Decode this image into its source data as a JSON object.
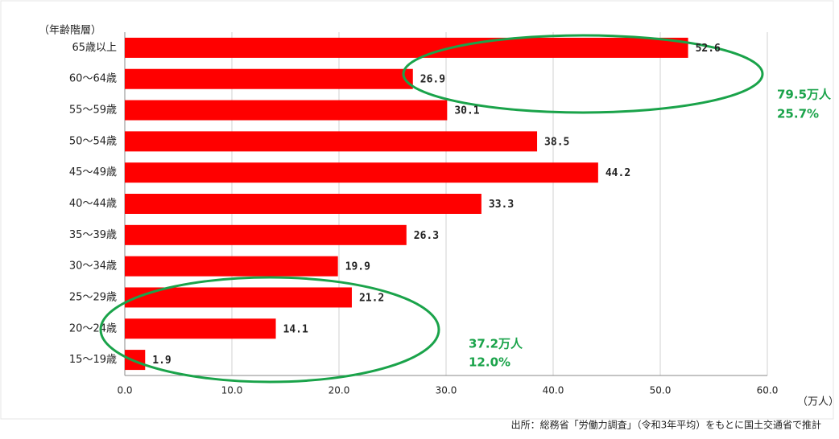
{
  "chart_data": {
    "type": "bar",
    "orientation": "horizontal",
    "y_label": "（年齢階層）",
    "x_label": "（万人）",
    "source": "出所：総務省「労働力調査」（令和3年平均）をもとに国土交通省で推計",
    "categories": [
      "65歳以上",
      "60～64歳",
      "55～59歳",
      "50～54歳",
      "45～49歳",
      "40～44歳",
      "35～39歳",
      "30～34歳",
      "25～29歳",
      "20～24歳",
      "15～19歳"
    ],
    "values": [
      52.6,
      26.9,
      30.1,
      38.5,
      44.2,
      33.3,
      26.3,
      19.9,
      21.2,
      14.1,
      1.9
    ],
    "color": "#ff0000",
    "xlim": [
      0,
      60
    ],
    "xticks": [
      {
        "value": 0,
        "label": "0.0"
      },
      {
        "value": 10,
        "label": "10.0"
      },
      {
        "value": 20,
        "label": "20.0"
      },
      {
        "value": 30,
        "label": "30.0"
      },
      {
        "value": 40,
        "label": "40.0"
      },
      {
        "value": 50,
        "label": "50.0"
      },
      {
        "value": 60,
        "label": "60.0"
      }
    ],
    "grid": true,
    "annotations": [
      {
        "lines": [
          "79.5万人",
          "25.7%"
        ]
      },
      {
        "lines": [
          "37.2万人",
          "12.0%"
        ]
      }
    ]
  }
}
